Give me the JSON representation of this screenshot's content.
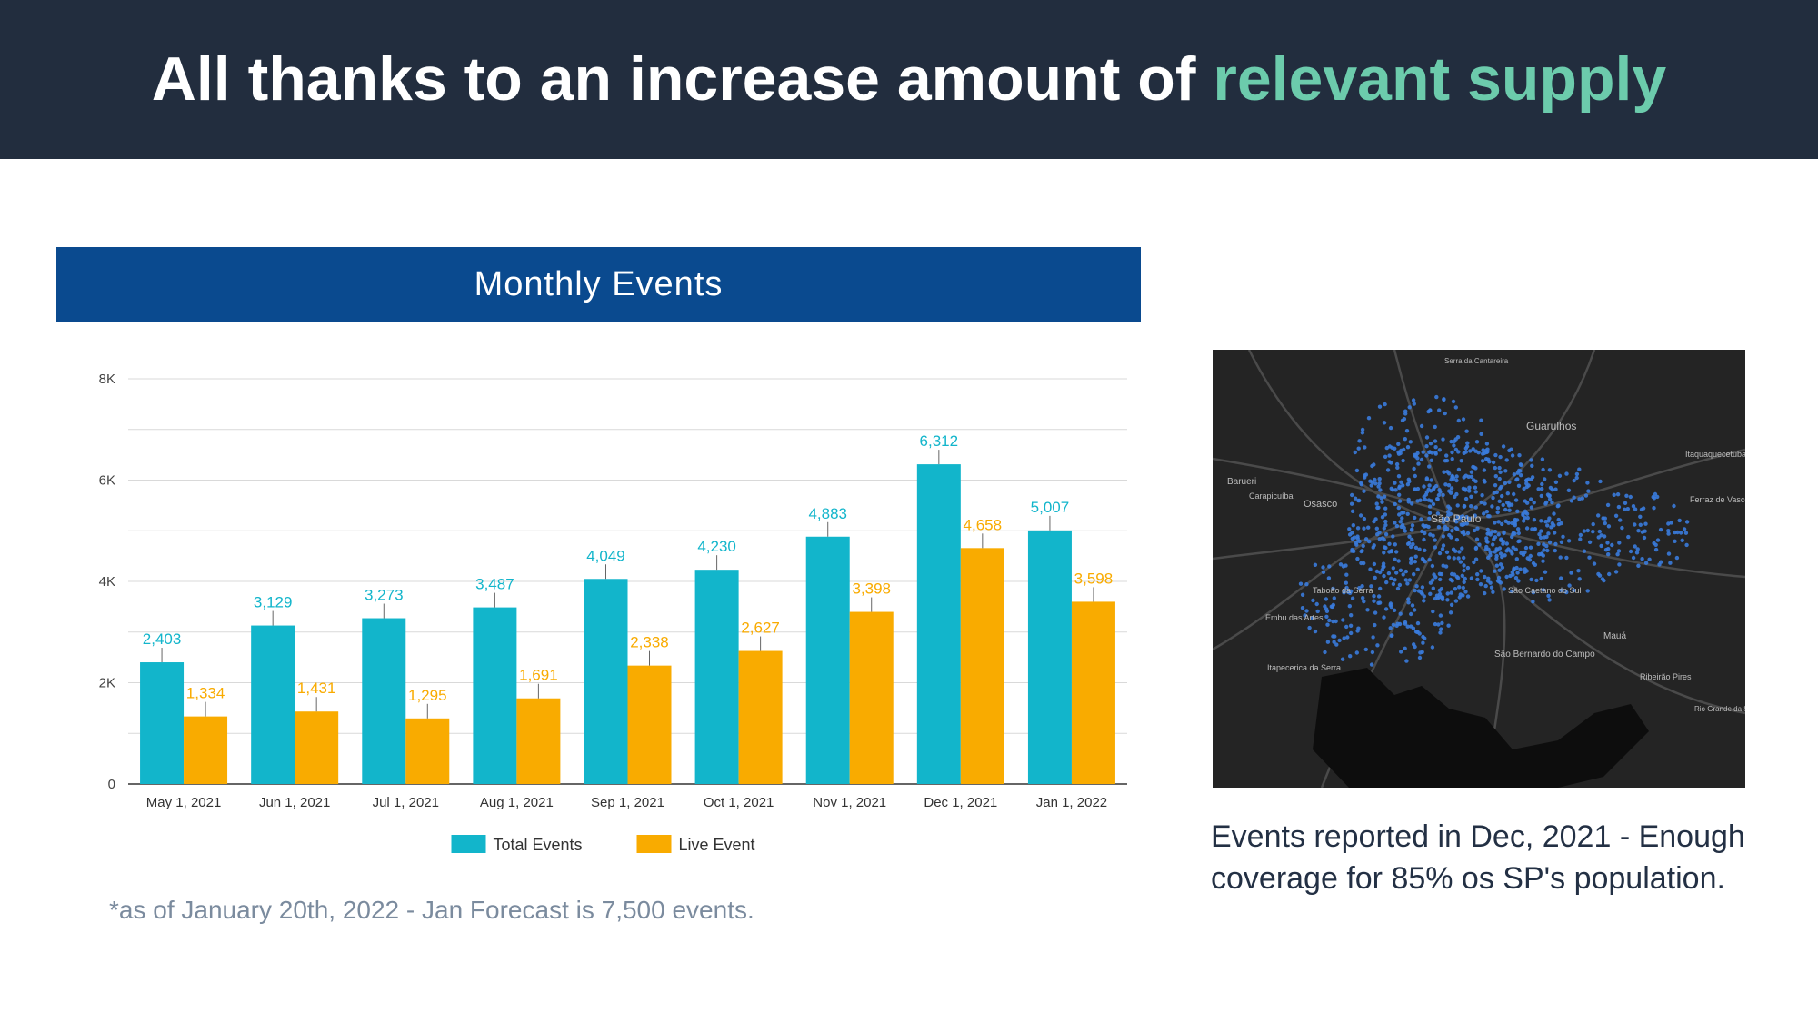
{
  "header": {
    "title_main": "All thanks to an increase amount of ",
    "title_accent": "relevant supply",
    "background": "#222d3e",
    "accent_color": "#6ccbac"
  },
  "chart_data": {
    "type": "bar",
    "title": "Monthly Events",
    "categories": [
      "May 1, 2021",
      "Jun 1, 2021",
      "Jul 1, 2021",
      "Aug 1, 2021",
      "Sep 1, 2021",
      "Oct 1, 2021",
      "Nov 1, 2021",
      "Dec 1, 2021",
      "Jan 1, 2022"
    ],
    "series": [
      {
        "name": "Total Events",
        "values": [
          2403,
          3129,
          3273,
          3487,
          4049,
          4230,
          4883,
          6312,
          5007
        ],
        "labels": [
          "2,403",
          "3,129",
          "3,273",
          "3,487",
          "4,049",
          "4,230",
          "4,883",
          "6,312",
          "5,007"
        ],
        "color": "#12b5cb"
      },
      {
        "name": "Live Event",
        "values": [
          1334,
          1431,
          1295,
          1691,
          2338,
          2627,
          3398,
          4658,
          3598
        ],
        "labels": [
          "1,334",
          "1,431",
          "1,295",
          "1,691",
          "2,338",
          "2,627",
          "3,398",
          "4,658",
          "3,598"
        ],
        "color": "#f9ab00"
      }
    ],
    "yticks": [
      0,
      2000,
      4000,
      6000,
      8000
    ],
    "ytick_labels": [
      "0",
      "2K",
      "4K",
      "6K",
      "8K"
    ],
    "ylim": [
      0,
      8000
    ],
    "grid": true,
    "legend": "bottom-center",
    "title_bar_color": "#0a4a8f"
  },
  "footnote": "*as of January 20th, 2022 - Jan Forecast is 7,500 events.",
  "map": {
    "labels": [
      "Guarulhos",
      "Osasco",
      "Barueri",
      "São Paulo",
      "Mauá",
      "Ribeirão Pires",
      "Taboão da Serra",
      "São Caetano do Sul",
      "São Bernardo do Campo",
      "Embu das Artes",
      "Itapecerica da Serra",
      "Ferraz de Vasconcelos",
      "Serra da Cantareira",
      "Carapicuíba",
      "Itaquaquecetuba",
      "Rio Grande da Serra"
    ]
  },
  "caption": "Events reported in Dec, 2021 - Enough coverage for 85% os SP's population."
}
